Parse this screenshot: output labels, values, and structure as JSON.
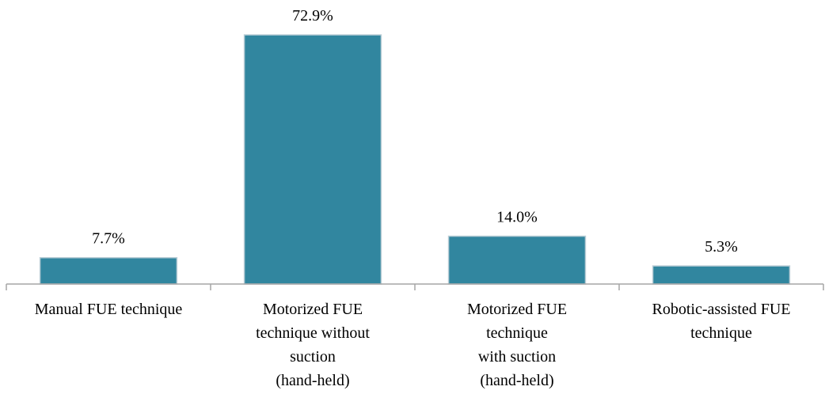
{
  "chart_data": {
    "type": "bar",
    "categories": [
      [
        "Manual FUE technique"
      ],
      [
        "Motorized FUE",
        "technique without",
        "suction",
        "(hand-held)"
      ],
      [
        "Motorized FUE",
        "technique",
        "with suction",
        "(hand-held)"
      ],
      [
        "Robotic-assisted FUE",
        "technique"
      ]
    ],
    "values": [
      7.7,
      72.9,
      14.0,
      5.3
    ],
    "value_labels": [
      "7.7%",
      "72.9%",
      "14.0%",
      "5.3%"
    ],
    "color": "#31869f",
    "ylim": [
      0,
      80
    ]
  }
}
